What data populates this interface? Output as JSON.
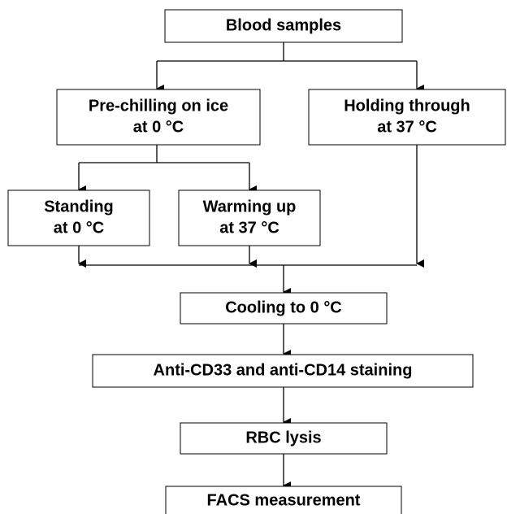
{
  "nodes": [
    {
      "lines": [
        "Blood samples"
      ]
    },
    {
      "lines": [
        "Pre-chilling on ice",
        "at 0 °C"
      ]
    },
    {
      "lines": [
        "Holding through",
        "at 37 °C"
      ]
    },
    {
      "lines": [
        "Standing",
        "at 0 °C"
      ]
    },
    {
      "lines": [
        "Warming up",
        "at 37 °C"
      ]
    },
    {
      "lines": [
        "Cooling to 0 °C"
      ]
    },
    {
      "lines": [
        "Anti-CD33 and anti-CD14 staining"
      ]
    },
    {
      "lines": [
        "RBC lysis"
      ]
    },
    {
      "lines": [
        "FACS measurement"
      ]
    }
  ]
}
